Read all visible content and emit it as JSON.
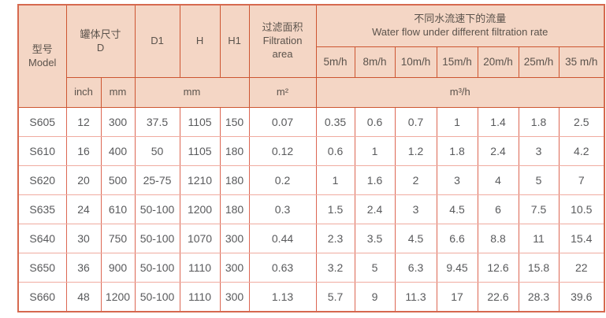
{
  "colors": {
    "header_bg": "#f4d6c5",
    "header_border": "#cd5531",
    "body_border_vertical": "#dc6753",
    "body_border_horizontal": "#f0aba0",
    "outer_border": "#d6694f",
    "text": "#595a5c"
  },
  "header": {
    "model_zh": "型号",
    "model_en": "Model",
    "tank_zh": "罐体尺寸",
    "tank_sub": "D",
    "d1": "D1",
    "h": "H",
    "h1": "H1",
    "filtration_zh": "过滤面积",
    "filtration_en_line1": "Filtration",
    "filtration_en_line2": "area",
    "flow_zh": "不同水流速下的流量",
    "flow_en": "Water flow under different filtration rate",
    "unit_inch": "inch",
    "unit_mm": "mm",
    "unit_mm_group": "mm",
    "unit_m2": "m²",
    "unit_m3h": "m³/h",
    "speeds": [
      "5m/h",
      "8m/h",
      "10m/h",
      "15m/h",
      "20m/h",
      "25m/h",
      "35 m/h"
    ]
  },
  "rows": [
    {
      "model": "S605",
      "inch": "12",
      "mm": "300",
      "d1": "37.5",
      "h": "1105",
      "h1": "150",
      "area": "0.07",
      "flows": [
        "0.35",
        "0.6",
        "0.7",
        "1",
        "1.4",
        "1.8",
        "2.5"
      ]
    },
    {
      "model": "S610",
      "inch": "16",
      "mm": "400",
      "d1": "50",
      "h": "1105",
      "h1": "180",
      "area": "0.12",
      "flows": [
        "0.6",
        "1",
        "1.2",
        "1.8",
        "2.4",
        "3",
        "4.2"
      ]
    },
    {
      "model": "S620",
      "inch": "20",
      "mm": "500",
      "d1": "25-75",
      "h": "1210",
      "h1": "180",
      "area": "0.2",
      "flows": [
        "1",
        "1.6",
        "2",
        "3",
        "4",
        "5",
        "7"
      ]
    },
    {
      "model": "S635",
      "inch": "24",
      "mm": "610",
      "d1": "50-100",
      "h": "1200",
      "h1": "180",
      "area": "0.3",
      "flows": [
        "1.5",
        "2.4",
        "3",
        "4.5",
        "6",
        "7.5",
        "10.5"
      ]
    },
    {
      "model": "S640",
      "inch": "30",
      "mm": "750",
      "d1": "50-100",
      "h": "1070",
      "h1": "300",
      "area": "0.44",
      "flows": [
        "2.3",
        "3.5",
        "4.5",
        "6.6",
        "8.8",
        "11",
        "15.4"
      ]
    },
    {
      "model": "S650",
      "inch": "36",
      "mm": "900",
      "d1": "50-100",
      "h": "1110",
      "h1": "300",
      "area": "0.63",
      "flows": [
        "3.2",
        "5",
        "6.3",
        "9.45",
        "12.6",
        "15.8",
        "22"
      ]
    },
    {
      "model": "S660",
      "inch": "48",
      "mm": "1200",
      "d1": "50-100",
      "h": "1110",
      "h1": "300",
      "area": "1.13",
      "flows": [
        "5.7",
        "9",
        "11.3",
        "17",
        "22.6",
        "28.3",
        "39.6"
      ]
    }
  ]
}
